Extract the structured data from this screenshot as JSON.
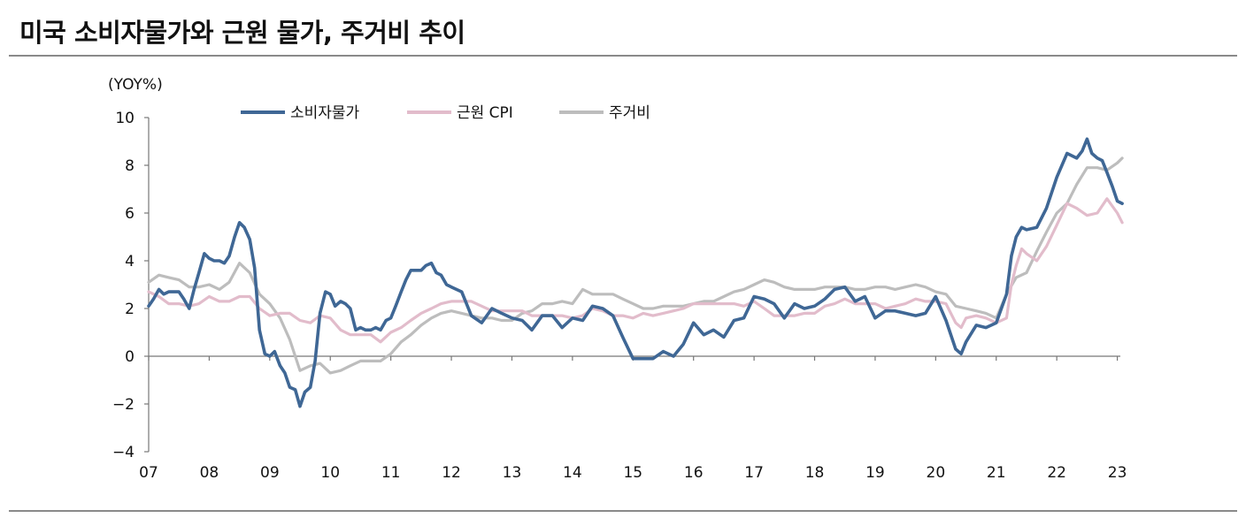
{
  "title": "미국 소비자물가와 근원 물가, 주거비 추이",
  "chart_data": {
    "type": "line",
    "title": "미국 소비자물가와 근원 물가, 주거비 추이",
    "ylabel": "(YOY%)",
    "xlabel": "",
    "ylim": [
      -4,
      10
    ],
    "yticks": [
      -4,
      -2,
      0,
      2,
      4,
      6,
      8,
      10
    ],
    "xlim": [
      2007,
      2023.05
    ],
    "xticks": [
      2007,
      2008,
      2009,
      2010,
      2011,
      2012,
      2013,
      2014,
      2015,
      2016,
      2017,
      2018,
      2019,
      2020,
      2021,
      2022,
      2023
    ],
    "xtick_labels": [
      "07",
      "08",
      "09",
      "10",
      "11",
      "12",
      "13",
      "14",
      "15",
      "16",
      "17",
      "18",
      "19",
      "20",
      "21",
      "22",
      "23"
    ],
    "legend": "top-left",
    "grid": false,
    "series": [
      {
        "name": "소비자물가",
        "color": "#3f6795",
        "x": [
          2007.0,
          2007.08,
          2007.17,
          2007.25,
          2007.33,
          2007.5,
          2007.58,
          2007.67,
          2007.75,
          2007.83,
          2007.92,
          2008.0,
          2008.08,
          2008.17,
          2008.25,
          2008.33,
          2008.42,
          2008.5,
          2008.58,
          2008.67,
          2008.75,
          2008.83,
          2008.92,
          2009.0,
          2009.08,
          2009.17,
          2009.25,
          2009.33,
          2009.42,
          2009.5,
          2009.58,
          2009.67,
          2009.75,
          2009.83,
          2009.92,
          2010.0,
          2010.08,
          2010.17,
          2010.25,
          2010.33,
          2010.42,
          2010.5,
          2010.58,
          2010.67,
          2010.75,
          2010.83,
          2010.92,
          2011.0,
          2011.08,
          2011.17,
          2011.25,
          2011.33,
          2011.42,
          2011.5,
          2011.58,
          2011.67,
          2011.75,
          2011.83,
          2011.92,
          2012.0,
          2012.17,
          2012.33,
          2012.5,
          2012.67,
          2012.83,
          2013.0,
          2013.17,
          2013.33,
          2013.5,
          2013.67,
          2013.83,
          2014.0,
          2014.17,
          2014.33,
          2014.5,
          2014.67,
          2014.83,
          2015.0,
          2015.17,
          2015.33,
          2015.5,
          2015.67,
          2015.83,
          2016.0,
          2016.17,
          2016.33,
          2016.5,
          2016.67,
          2016.83,
          2017.0,
          2017.17,
          2017.33,
          2017.5,
          2017.67,
          2017.83,
          2018.0,
          2018.17,
          2018.33,
          2018.5,
          2018.67,
          2018.83,
          2019.0,
          2019.17,
          2019.33,
          2019.5,
          2019.67,
          2019.83,
          2020.0,
          2020.17,
          2020.33,
          2020.42,
          2020.5,
          2020.67,
          2020.83,
          2021.0,
          2021.17,
          2021.25,
          2021.33,
          2021.42,
          2021.5,
          2021.67,
          2021.83,
          2022.0,
          2022.17,
          2022.33,
          2022.42,
          2022.5,
          2022.58,
          2022.67,
          2022.75,
          2022.83,
          2022.92,
          2023.0,
          2023.08
        ],
        "values": [
          2.1,
          2.4,
          2.8,
          2.6,
          2.7,
          2.7,
          2.4,
          2.0,
          2.8,
          3.5,
          4.3,
          4.1,
          4.0,
          4.0,
          3.9,
          4.2,
          5.0,
          5.6,
          5.4,
          4.9,
          3.7,
          1.1,
          0.1,
          0.0,
          0.2,
          -0.4,
          -0.7,
          -1.3,
          -1.4,
          -2.1,
          -1.5,
          -1.3,
          -0.2,
          1.8,
          2.7,
          2.6,
          2.1,
          2.3,
          2.2,
          2.0,
          1.1,
          1.2,
          1.1,
          1.1,
          1.2,
          1.1,
          1.5,
          1.6,
          2.1,
          2.7,
          3.2,
          3.6,
          3.6,
          3.6,
          3.8,
          3.9,
          3.5,
          3.4,
          3.0,
          2.9,
          2.7,
          1.7,
          1.4,
          2.0,
          1.8,
          1.6,
          1.5,
          1.1,
          1.7,
          1.7,
          1.2,
          1.6,
          1.5,
          2.1,
          2.0,
          1.7,
          0.8,
          -0.1,
          -0.1,
          -0.1,
          0.2,
          0.0,
          0.5,
          1.4,
          0.9,
          1.1,
          0.8,
          1.5,
          1.6,
          2.5,
          2.4,
          2.2,
          1.6,
          2.2,
          2.0,
          2.1,
          2.4,
          2.8,
          2.9,
          2.3,
          2.5,
          1.6,
          1.9,
          1.9,
          1.8,
          1.7,
          1.8,
          2.5,
          1.5,
          0.3,
          0.1,
          0.6,
          1.3,
          1.2,
          1.4,
          2.6,
          4.2,
          5.0,
          5.4,
          5.3,
          5.4,
          6.2,
          7.5,
          8.5,
          8.3,
          8.6,
          9.1,
          8.5,
          8.3,
          8.2,
          7.7,
          7.1,
          6.5,
          6.4
        ]
      },
      {
        "name": "근원 CPI",
        "color": "#e2bccb",
        "x": [
          2007.0,
          2007.17,
          2007.33,
          2007.5,
          2007.67,
          2007.83,
          2008.0,
          2008.17,
          2008.33,
          2008.5,
          2008.67,
          2008.83,
          2009.0,
          2009.17,
          2009.33,
          2009.5,
          2009.67,
          2009.83,
          2010.0,
          2010.17,
          2010.33,
          2010.5,
          2010.67,
          2010.83,
          2011.0,
          2011.17,
          2011.33,
          2011.5,
          2011.67,
          2011.83,
          2012.0,
          2012.17,
          2012.33,
          2012.5,
          2012.67,
          2012.83,
          2013.0,
          2013.17,
          2013.33,
          2013.5,
          2013.67,
          2013.83,
          2014.0,
          2014.17,
          2014.33,
          2014.5,
          2014.67,
          2014.83,
          2015.0,
          2015.17,
          2015.33,
          2015.5,
          2015.67,
          2015.83,
          2016.0,
          2016.17,
          2016.33,
          2016.5,
          2016.67,
          2016.83,
          2017.0,
          2017.17,
          2017.33,
          2017.5,
          2017.67,
          2017.83,
          2018.0,
          2018.17,
          2018.33,
          2018.5,
          2018.67,
          2018.83,
          2019.0,
          2019.17,
          2019.33,
          2019.5,
          2019.67,
          2019.83,
          2020.0,
          2020.17,
          2020.33,
          2020.42,
          2020.5,
          2020.67,
          2020.83,
          2021.0,
          2021.17,
          2021.25,
          2021.33,
          2021.42,
          2021.5,
          2021.67,
          2021.83,
          2022.0,
          2022.17,
          2022.33,
          2022.5,
          2022.67,
          2022.83,
          2023.0,
          2023.08
        ],
        "values": [
          2.7,
          2.5,
          2.2,
          2.2,
          2.1,
          2.2,
          2.5,
          2.3,
          2.3,
          2.5,
          2.5,
          2.0,
          1.7,
          1.8,
          1.8,
          1.5,
          1.4,
          1.7,
          1.6,
          1.1,
          0.9,
          0.9,
          0.9,
          0.6,
          1.0,
          1.2,
          1.5,
          1.8,
          2.0,
          2.2,
          2.3,
          2.3,
          2.3,
          2.1,
          1.9,
          1.9,
          1.9,
          1.9,
          1.7,
          1.7,
          1.7,
          1.7,
          1.6,
          1.7,
          2.0,
          1.9,
          1.7,
          1.7,
          1.6,
          1.8,
          1.7,
          1.8,
          1.9,
          2.0,
          2.2,
          2.2,
          2.2,
          2.2,
          2.2,
          2.1,
          2.3,
          2.0,
          1.7,
          1.7,
          1.7,
          1.8,
          1.8,
          2.1,
          2.2,
          2.4,
          2.2,
          2.2,
          2.2,
          2.0,
          2.1,
          2.2,
          2.4,
          2.3,
          2.3,
          2.2,
          1.4,
          1.2,
          1.6,
          1.7,
          1.6,
          1.4,
          1.6,
          3.0,
          3.8,
          4.5,
          4.3,
          4.0,
          4.6,
          5.5,
          6.4,
          6.2,
          5.9,
          6.0,
          6.6,
          6.0,
          5.6
        ]
      },
      {
        "name": "주거비",
        "color": "#bdbdbd",
        "x": [
          2007.0,
          2007.17,
          2007.33,
          2007.5,
          2007.67,
          2007.83,
          2008.0,
          2008.17,
          2008.33,
          2008.5,
          2008.67,
          2008.83,
          2009.0,
          2009.17,
          2009.33,
          2009.5,
          2009.67,
          2009.83,
          2010.0,
          2010.17,
          2010.33,
          2010.5,
          2010.67,
          2010.83,
          2011.0,
          2011.17,
          2011.33,
          2011.5,
          2011.67,
          2011.83,
          2012.0,
          2012.17,
          2012.33,
          2012.5,
          2012.67,
          2012.83,
          2013.0,
          2013.17,
          2013.33,
          2013.5,
          2013.67,
          2013.83,
          2014.0,
          2014.17,
          2014.33,
          2014.5,
          2014.67,
          2014.83,
          2015.0,
          2015.17,
          2015.33,
          2015.5,
          2015.67,
          2015.83,
          2016.0,
          2016.17,
          2016.33,
          2016.5,
          2016.67,
          2016.83,
          2017.0,
          2017.17,
          2017.33,
          2017.5,
          2017.67,
          2017.83,
          2018.0,
          2018.17,
          2018.33,
          2018.5,
          2018.67,
          2018.83,
          2019.0,
          2019.17,
          2019.33,
          2019.5,
          2019.67,
          2019.83,
          2020.0,
          2020.17,
          2020.33,
          2020.5,
          2020.67,
          2020.83,
          2021.0,
          2021.17,
          2021.33,
          2021.5,
          2021.67,
          2021.83,
          2022.0,
          2022.17,
          2022.33,
          2022.5,
          2022.67,
          2022.83,
          2023.0,
          2023.08
        ],
        "values": [
          3.1,
          3.4,
          3.3,
          3.2,
          2.9,
          2.9,
          3.0,
          2.8,
          3.1,
          3.9,
          3.5,
          2.6,
          2.2,
          1.6,
          0.7,
          -0.6,
          -0.4,
          -0.3,
          -0.7,
          -0.6,
          -0.4,
          -0.2,
          -0.2,
          -0.2,
          0.1,
          0.6,
          0.9,
          1.3,
          1.6,
          1.8,
          1.9,
          1.8,
          1.7,
          1.6,
          1.6,
          1.5,
          1.5,
          1.8,
          1.9,
          2.2,
          2.2,
          2.3,
          2.2,
          2.8,
          2.6,
          2.6,
          2.6,
          2.4,
          2.2,
          2.0,
          2.0,
          2.1,
          2.1,
          2.1,
          2.2,
          2.3,
          2.3,
          2.5,
          2.7,
          2.8,
          3.0,
          3.2,
          3.1,
          2.9,
          2.8,
          2.8,
          2.8,
          2.9,
          2.9,
          2.9,
          2.8,
          2.8,
          2.9,
          2.9,
          2.8,
          2.9,
          3.0,
          2.9,
          2.7,
          2.6,
          2.1,
          2.0,
          1.9,
          1.8,
          1.6,
          2.6,
          3.3,
          3.5,
          4.4,
          5.2,
          6.0,
          6.4,
          7.2,
          7.9,
          7.9,
          7.8,
          8.1,
          8.3
        ]
      }
    ]
  }
}
